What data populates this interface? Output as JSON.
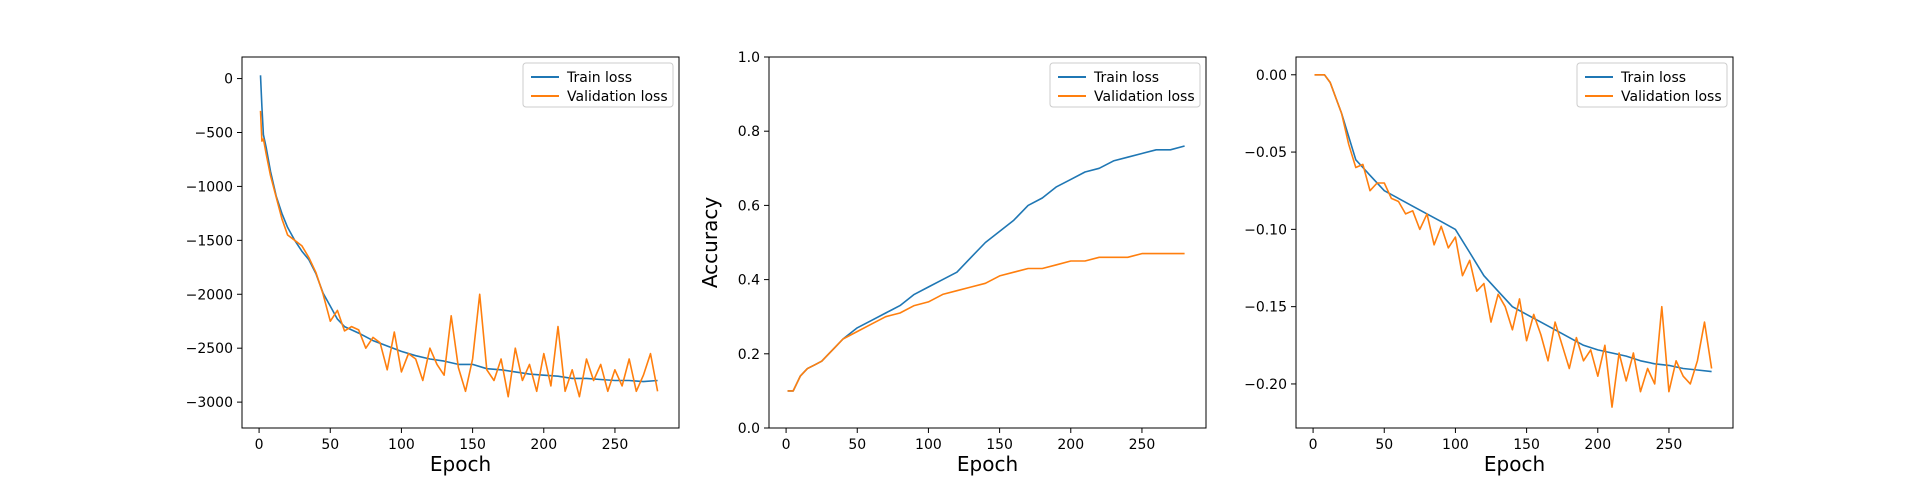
{
  "colors": {
    "train": "#1f77b4",
    "validation": "#ff7f0e",
    "axes": "#000000",
    "legend_border": "#cccccc"
  },
  "chart_data": [
    {
      "type": "line",
      "xlabel": "Epoch",
      "ylabel": "",
      "xlim": [
        -12,
        295
      ],
      "ylim": [
        -3240,
        200
      ],
      "xticks": [
        0,
        50,
        100,
        150,
        200,
        250
      ],
      "yticks": [
        0,
        -500,
        -1000,
        -1500,
        -2000,
        -2500,
        -3000
      ],
      "ytick_labels": [
        "0",
        "−500",
        "−1000",
        "−1500",
        "−2000",
        "−2500",
        "−3000"
      ],
      "legend_placement": "top-right",
      "series": [
        {
          "name": "Train loss",
          "color": "#1f77b4",
          "x": [
            1,
            2,
            3,
            5,
            8,
            12,
            16,
            20,
            25,
            30,
            35,
            40,
            45,
            50,
            55,
            60,
            70,
            80,
            90,
            100,
            110,
            120,
            130,
            140,
            150,
            160,
            170,
            180,
            190,
            200,
            210,
            220,
            230,
            240,
            250,
            260,
            270,
            280
          ],
          "y": [
            30,
            -260,
            -520,
            -640,
            -860,
            -1090,
            -1250,
            -1380,
            -1500,
            -1600,
            -1680,
            -1810,
            -1990,
            -2110,
            -2230,
            -2300,
            -2360,
            -2430,
            -2480,
            -2530,
            -2570,
            -2600,
            -2620,
            -2650,
            -2650,
            -2690,
            -2700,
            -2720,
            -2740,
            -2750,
            -2760,
            -2780,
            -2780,
            -2790,
            -2800,
            -2800,
            -2810,
            -2800
          ]
        },
        {
          "name": "Validation loss",
          "color": "#ff7f0e",
          "x": [
            1,
            2,
            3,
            5,
            8,
            12,
            16,
            20,
            25,
            30,
            35,
            40,
            45,
            50,
            55,
            60,
            65,
            70,
            75,
            80,
            85,
            90,
            95,
            100,
            105,
            110,
            115,
            120,
            125,
            130,
            135,
            140,
            145,
            150,
            155,
            160,
            165,
            170,
            175,
            180,
            185,
            190,
            195,
            200,
            205,
            210,
            215,
            220,
            225,
            230,
            235,
            240,
            245,
            250,
            255,
            260,
            265,
            270,
            275,
            280
          ],
          "y": [
            -300,
            -580,
            -560,
            -700,
            -900,
            -1100,
            -1300,
            -1450,
            -1500,
            -1550,
            -1660,
            -1800,
            -2000,
            -2250,
            -2150,
            -2340,
            -2300,
            -2330,
            -2500,
            -2400,
            -2450,
            -2700,
            -2350,
            -2720,
            -2550,
            -2600,
            -2800,
            -2500,
            -2650,
            -2750,
            -2200,
            -2680,
            -2900,
            -2600,
            -2000,
            -2700,
            -2800,
            -2600,
            -2950,
            -2500,
            -2800,
            -2650,
            -2900,
            -2550,
            -2850,
            -2300,
            -2900,
            -2700,
            -2950,
            -2600,
            -2800,
            -2650,
            -2900,
            -2700,
            -2850,
            -2600,
            -2900,
            -2750,
            -2550,
            -2900
          ]
        }
      ]
    },
    {
      "type": "line",
      "xlabel": "Epoch",
      "ylabel": "Accuracy",
      "xlim": [
        -12,
        295
      ],
      "ylim": [
        0,
        1
      ],
      "xticks": [
        0,
        50,
        100,
        150,
        200,
        250
      ],
      "yticks": [
        0,
        0.2,
        0.4,
        0.6,
        0.8,
        1.0
      ],
      "ytick_labels": [
        "0.0",
        "0.2",
        "0.4",
        "0.6",
        "0.8",
        "1.0"
      ],
      "legend_placement": "top-right",
      "series": [
        {
          "name": "Train loss",
          "color": "#1f77b4",
          "x": [
            1,
            5,
            10,
            15,
            20,
            25,
            30,
            35,
            40,
            50,
            60,
            70,
            80,
            90,
            100,
            110,
            120,
            130,
            140,
            150,
            160,
            170,
            180,
            190,
            200,
            210,
            220,
            230,
            240,
            250,
            260,
            270,
            280
          ],
          "y": [
            0.1,
            0.1,
            0.14,
            0.16,
            0.17,
            0.18,
            0.2,
            0.22,
            0.24,
            0.27,
            0.29,
            0.31,
            0.33,
            0.36,
            0.38,
            0.4,
            0.42,
            0.46,
            0.5,
            0.53,
            0.56,
            0.6,
            0.62,
            0.65,
            0.67,
            0.69,
            0.7,
            0.72,
            0.73,
            0.74,
            0.75,
            0.75,
            0.76
          ]
        },
        {
          "name": "Validation loss",
          "color": "#ff7f0e",
          "x": [
            1,
            5,
            10,
            15,
            20,
            25,
            30,
            35,
            40,
            50,
            60,
            70,
            80,
            90,
            100,
            110,
            120,
            130,
            140,
            150,
            160,
            170,
            180,
            190,
            200,
            210,
            220,
            230,
            240,
            250,
            260,
            270,
            280
          ],
          "y": [
            0.1,
            0.1,
            0.14,
            0.16,
            0.17,
            0.18,
            0.2,
            0.22,
            0.24,
            0.26,
            0.28,
            0.3,
            0.31,
            0.33,
            0.34,
            0.36,
            0.37,
            0.38,
            0.39,
            0.41,
            0.42,
            0.43,
            0.43,
            0.44,
            0.45,
            0.45,
            0.46,
            0.46,
            0.46,
            0.47,
            0.47,
            0.47,
            0.47
          ]
        }
      ]
    },
    {
      "type": "line",
      "xlabel": "Epoch",
      "ylabel": "",
      "xlim": [
        -12,
        295
      ],
      "ylim": [
        -0.2285,
        0.0115
      ],
      "xticks": [
        0,
        50,
        100,
        150,
        200,
        250
      ],
      "yticks": [
        0,
        -0.05,
        -0.1,
        -0.15,
        -0.2
      ],
      "ytick_labels": [
        "0.00",
        "−0.05",
        "−0.10",
        "−0.15",
        "−0.20"
      ],
      "legend_placement": "top-right",
      "series": [
        {
          "name": "Train loss",
          "color": "#1f77b4",
          "x": [
            1,
            5,
            8,
            12,
            16,
            20,
            25,
            30,
            35,
            40,
            50,
            60,
            70,
            80,
            90,
            100,
            110,
            120,
            130,
            140,
            150,
            160,
            170,
            180,
            190,
            200,
            210,
            220,
            230,
            240,
            250,
            260,
            270,
            280
          ],
          "y": [
            0,
            0,
            0,
            -0.005,
            -0.015,
            -0.025,
            -0.04,
            -0.055,
            -0.06,
            -0.065,
            -0.075,
            -0.08,
            -0.085,
            -0.09,
            -0.095,
            -0.1,
            -0.115,
            -0.13,
            -0.14,
            -0.15,
            -0.155,
            -0.16,
            -0.165,
            -0.17,
            -0.175,
            -0.178,
            -0.18,
            -0.182,
            -0.185,
            -0.187,
            -0.188,
            -0.19,
            -0.191,
            -0.192
          ]
        },
        {
          "name": "Validation loss",
          "color": "#ff7f0e",
          "x": [
            1,
            5,
            8,
            12,
            16,
            20,
            25,
            30,
            35,
            40,
            45,
            50,
            55,
            60,
            65,
            70,
            75,
            80,
            85,
            90,
            95,
            100,
            105,
            110,
            115,
            120,
            125,
            130,
            135,
            140,
            145,
            150,
            155,
            160,
            165,
            170,
            175,
            180,
            185,
            190,
            195,
            200,
            205,
            210,
            215,
            220,
            225,
            230,
            235,
            240,
            245,
            250,
            255,
            260,
            265,
            270,
            275,
            280
          ],
          "y": [
            0,
            0,
            0,
            -0.005,
            -0.015,
            -0.025,
            -0.045,
            -0.06,
            -0.058,
            -0.075,
            -0.07,
            -0.07,
            -0.08,
            -0.082,
            -0.09,
            -0.088,
            -0.1,
            -0.09,
            -0.11,
            -0.098,
            -0.112,
            -0.105,
            -0.13,
            -0.12,
            -0.14,
            -0.135,
            -0.16,
            -0.142,
            -0.15,
            -0.165,
            -0.145,
            -0.172,
            -0.155,
            -0.168,
            -0.185,
            -0.16,
            -0.175,
            -0.19,
            -0.17,
            -0.185,
            -0.178,
            -0.195,
            -0.175,
            -0.215,
            -0.18,
            -0.198,
            -0.18,
            -0.205,
            -0.19,
            -0.2,
            -0.15,
            -0.205,
            -0.185,
            -0.195,
            -0.2,
            -0.185,
            -0.16,
            -0.19
          ]
        }
      ]
    }
  ]
}
